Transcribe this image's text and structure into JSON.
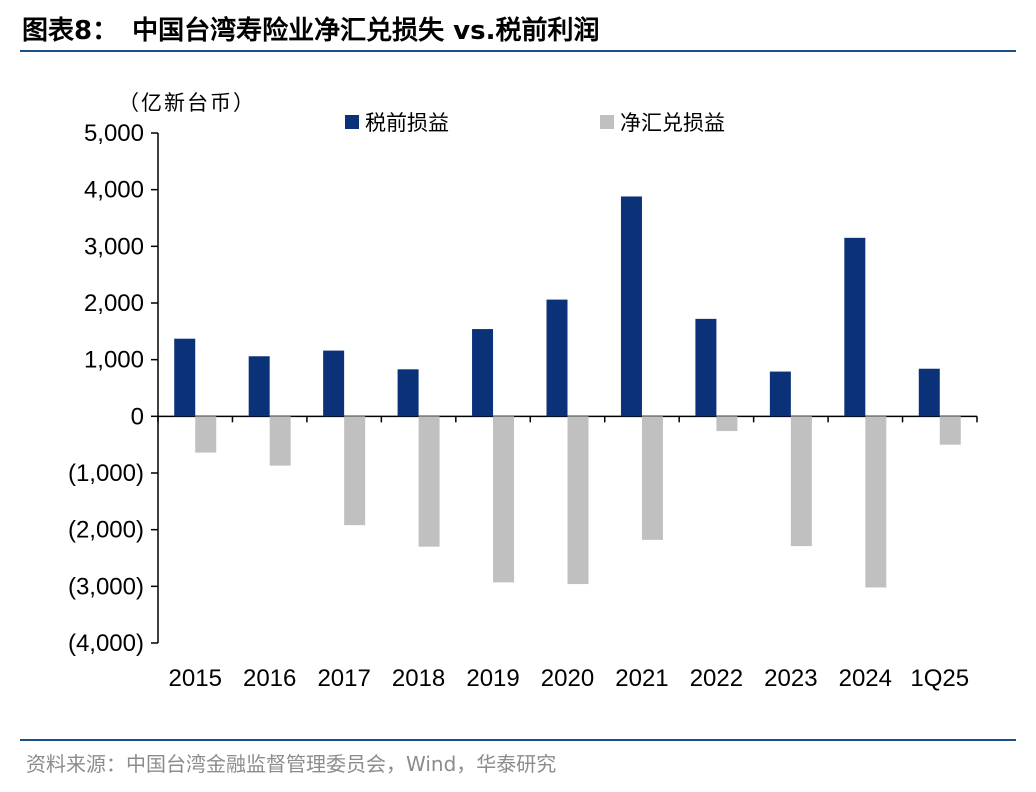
{
  "header": {
    "label": "图表8：",
    "title": "中国台湾寿险业净汇兑损失 vs.税前利润"
  },
  "source": "资料来源：中国台湾金融监督管理委员会，Wind，华泰研究",
  "colors": {
    "pretax": "#0b3278",
    "fx": "#c0c0c0",
    "rule": "#1a4f8a"
  },
  "chart_data": {
    "type": "bar",
    "unit_label": "（亿新台币）",
    "categories": [
      "2015",
      "2016",
      "2017",
      "2018",
      "2019",
      "2020",
      "2021",
      "2022",
      "2023",
      "2024",
      "1Q25"
    ],
    "series": [
      {
        "name": "税前损益",
        "values": [
          1370,
          1060,
          1160,
          830,
          1540,
          2060,
          3880,
          1720,
          790,
          3150,
          840
        ]
      },
      {
        "name": "净汇兑损益",
        "values": [
          -640,
          -870,
          -1920,
          -2300,
          -2930,
          -2960,
          -2180,
          -260,
          -2290,
          -3020,
          -500
        ]
      }
    ],
    "ylim": [
      -4000,
      5000
    ],
    "yticks": [
      5000,
      4000,
      3000,
      2000,
      1000,
      0,
      -1000,
      -2000,
      -3000,
      -4000
    ],
    "ytick_labels": [
      "5,000",
      "4,000",
      "3,000",
      "2,000",
      "1,000",
      "0",
      "(1,000)",
      "(2,000)",
      "(3,000)",
      "(4,000)"
    ],
    "legend_position": "top"
  }
}
